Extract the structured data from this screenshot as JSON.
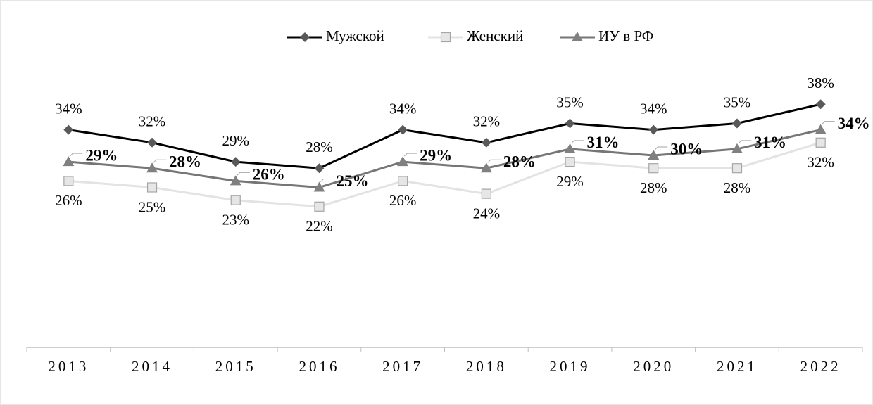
{
  "chart_data": {
    "type": "line",
    "categories": [
      "2013",
      "2014",
      "2015",
      "2016",
      "2017",
      "2018",
      "2019",
      "2020",
      "2021",
      "2022"
    ],
    "series": [
      {
        "name": "Мужской",
        "color": "#000000",
        "marker": "diamond",
        "marker_color": "#595959",
        "values": [
          34,
          32,
          29,
          28,
          34,
          32,
          35,
          34,
          35,
          38
        ],
        "value_labels": [
          "34%",
          "32%",
          "29%",
          "28%",
          "34%",
          "32%",
          "35%",
          "34%",
          "35%",
          "38%"
        ]
      },
      {
        "name": "Женский",
        "color": "#e3e3e3",
        "marker": "square",
        "marker_color": "#e6e6e6",
        "values": [
          26,
          25,
          23,
          22,
          26,
          24,
          29,
          28,
          28,
          32
        ],
        "value_labels": [
          "26%",
          "25%",
          "23%",
          "22%",
          "26%",
          "24%",
          "29%",
          "28%",
          "28%",
          "32%"
        ]
      },
      {
        "name": "ИУ в РФ",
        "color": "#767676",
        "marker": "triangle",
        "marker_color": "#808080",
        "values": [
          29,
          28,
          26,
          25,
          29,
          28,
          31,
          30,
          31,
          34
        ],
        "value_labels": [
          "29%",
          "28%",
          "26%",
          "25%",
          "29%",
          "28%",
          "31%",
          "30%",
          "31%",
          "34%"
        ]
      }
    ],
    "ylim": [
      0,
      50
    ],
    "legend": "top",
    "grid": false
  }
}
